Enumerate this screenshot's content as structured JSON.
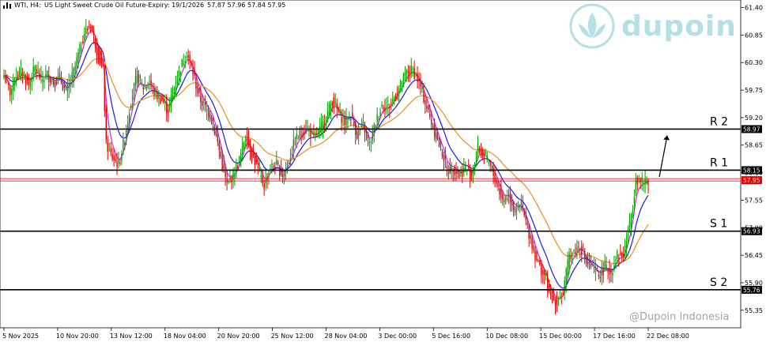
{
  "header": {
    "symbol": "WTI, H4:",
    "description": "US Light Sweet Crude Oil Future-Expiry: 19/1/2026",
    "ohlc": "57.87 57.96 57.84 57.95"
  },
  "watermark": {
    "brand": "dupoin",
    "footer": "@Dupoin Indonesia"
  },
  "colors": {
    "up": "#00a000",
    "down": "#e00000",
    "ma_fast": "#e020e0",
    "ma_mid": "#1a1adc",
    "ma_slow": "#f08c14",
    "level_line": "#000000",
    "bid_line": "#e00000"
  },
  "chart_data": {
    "type": "candlestick",
    "y_axis": {
      "range": [
        55.0,
        61.55
      ],
      "ticks": [
        61.4,
        60.85,
        60.3,
        59.75,
        59.2,
        58.65,
        58.1,
        57.55,
        57.0,
        56.45,
        55.9,
        55.35
      ]
    },
    "x_axis": {
      "ticks": [
        "5 Nov 2025",
        "10 Nov 20:00",
        "13 Nov 12:00",
        "18 Nov 04:00",
        "20 Nov 20:00",
        "25 Nov 12:00",
        "28 Nov 04:00",
        "3 Dec 00:00",
        "5 Dec 16:00",
        "10 Dec 08:00",
        "15 Dec 00:00",
        "17 Dec 16:00",
        "22 Dec 08:00"
      ]
    },
    "levels": [
      {
        "name": "R 2",
        "value": 58.97
      },
      {
        "name": "R 1",
        "value": 58.15
      },
      {
        "name": "S 1",
        "value": 56.93
      },
      {
        "name": "S 2",
        "value": 55.76
      }
    ],
    "current_price": 57.95,
    "annotation": "upward arrow from current price toward R 2",
    "moving_averages": [
      "fast (magenta)",
      "medium (blue)",
      "slow (orange)"
    ],
    "path_points": [
      [
        0,
        60.05
      ],
      [
        4,
        59.7
      ],
      [
        8,
        60.05
      ],
      [
        12,
        60.1
      ],
      [
        16,
        59.85
      ],
      [
        20,
        60.2
      ],
      [
        24,
        59.95
      ],
      [
        28,
        60.05
      ],
      [
        32,
        59.9
      ],
      [
        36,
        60.0
      ],
      [
        40,
        59.7
      ],
      [
        44,
        60.0
      ],
      [
        48,
        60.45
      ],
      [
        52,
        60.9
      ],
      [
        56,
        61.05
      ],
      [
        60,
        60.55
      ],
      [
        64,
        60.15
      ],
      [
        66,
        58.65
      ],
      [
        70,
        58.4
      ],
      [
        74,
        58.25
      ],
      [
        78,
        58.8
      ],
      [
        82,
        59.55
      ],
      [
        86,
        60.05
      ],
      [
        90,
        59.8
      ],
      [
        94,
        59.9
      ],
      [
        98,
        59.65
      ],
      [
        102,
        59.55
      ],
      [
        106,
        59.35
      ],
      [
        110,
        59.8
      ],
      [
        114,
        60.2
      ],
      [
        118,
        60.5
      ],
      [
        122,
        60.1
      ],
      [
        126,
        59.6
      ],
      [
        130,
        59.4
      ],
      [
        134,
        59.2
      ],
      [
        138,
        58.7
      ],
      [
        141,
        58.25
      ],
      [
        144,
        57.85
      ],
      [
        148,
        58.05
      ],
      [
        152,
        58.35
      ],
      [
        156,
        58.85
      ],
      [
        160,
        58.5
      ],
      [
        164,
        58.15
      ],
      [
        168,
        57.85
      ],
      [
        172,
        58.2
      ],
      [
        176,
        58.25
      ],
      [
        180,
        58.05
      ],
      [
        184,
        58.35
      ],
      [
        188,
        58.75
      ],
      [
        192,
        58.9
      ],
      [
        196,
        59.0
      ],
      [
        200,
        58.8
      ],
      [
        204,
        58.95
      ],
      [
        208,
        59.2
      ],
      [
        212,
        59.55
      ],
      [
        216,
        59.3
      ],
      [
        220,
        59.1
      ],
      [
        224,
        59.25
      ],
      [
        228,
        58.85
      ],
      [
        232,
        59.05
      ],
      [
        236,
        58.65
      ],
      [
        240,
        59.1
      ],
      [
        244,
        59.45
      ],
      [
        248,
        59.4
      ],
      [
        252,
        59.6
      ],
      [
        256,
        59.85
      ],
      [
        260,
        60.1
      ],
      [
        264,
        60.15
      ],
      [
        268,
        59.9
      ],
      [
        272,
        59.5
      ],
      [
        276,
        59.1
      ],
      [
        280,
        58.75
      ],
      [
        284,
        58.4
      ],
      [
        286,
        58.15
      ],
      [
        290,
        58.2
      ],
      [
        294,
        58.05
      ],
      [
        298,
        58.2
      ],
      [
        302,
        58.05
      ],
      [
        306,
        58.6
      ],
      [
        310,
        58.45
      ],
      [
        314,
        58.2
      ],
      [
        318,
        57.9
      ],
      [
        322,
        57.55
      ],
      [
        326,
        57.65
      ],
      [
        330,
        57.35
      ],
      [
        334,
        57.45
      ],
      [
        338,
        57.0
      ],
      [
        342,
        56.55
      ],
      [
        346,
        56.2
      ],
      [
        350,
        56.0
      ],
      [
        352,
        55.65
      ],
      [
        355,
        55.6
      ],
      [
        357,
        55.5
      ],
      [
        361,
        55.7
      ],
      [
        365,
        56.45
      ],
      [
        369,
        56.55
      ],
      [
        372,
        56.65
      ],
      [
        376,
        56.3
      ],
      [
        380,
        56.2
      ],
      [
        384,
        56.05
      ],
      [
        388,
        56.2
      ],
      [
        392,
        56.1
      ],
      [
        396,
        56.45
      ],
      [
        400,
        56.45
      ],
      [
        404,
        57.05
      ],
      [
        406,
        57.45
      ],
      [
        408,
        58.0
      ],
      [
        412,
        57.9
      ],
      [
        416,
        57.95
      ]
    ]
  }
}
